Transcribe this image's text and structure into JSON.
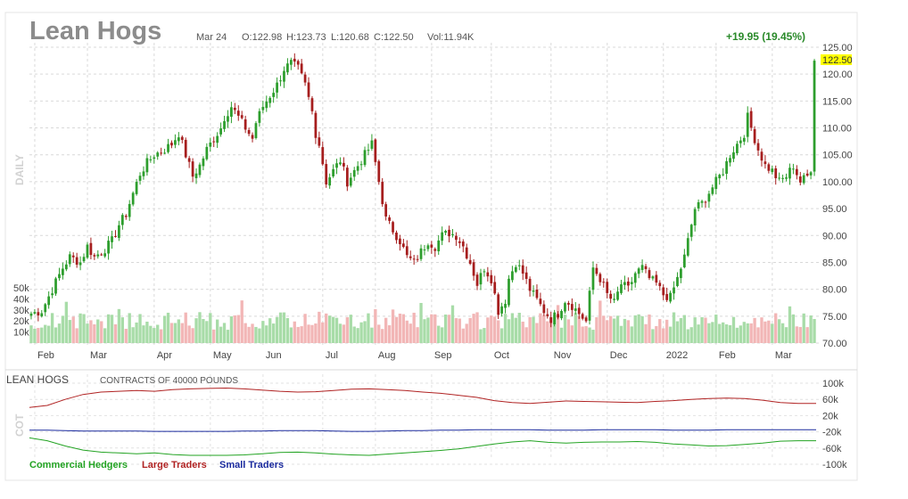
{
  "header": {
    "title": "Lean Hogs",
    "date": "Mar 24",
    "open": "O:122.98",
    "high": "H:123.73",
    "low": "L:120.68",
    "close": "C:122.50",
    "volume": "Vol:11.94K",
    "change": "+19.95 (19.45%)",
    "last_price_tag": "122.50"
  },
  "colors": {
    "up": "#2d9e2d",
    "down": "#a61e1e",
    "vol_up": "#a8dca8",
    "vol_down": "#f2b6b6",
    "commercial": "#22a322",
    "large": "#b02222",
    "small": "#1a2a9e",
    "price_tag_bg": "#ffff00",
    "change": "#2a8a2a"
  },
  "side_labels": {
    "daily": "DAILY",
    "cot": "COT"
  },
  "cot": {
    "title": "LEAN HOGS",
    "subtitle": "CONTRACTS OF 40000 POUNDS",
    "legend": [
      "Commercial Hedgers",
      "Large Traders",
      "Small Traders"
    ]
  },
  "chart_data": [
    {
      "type": "line",
      "subtype": "candlestick_with_volume",
      "title": "Lean Hogs",
      "y_ticks": [
        "125.00",
        "120.00",
        "115.00",
        "110.00",
        "105.00",
        "100.00",
        "95.00",
        "90.00",
        "85.00",
        "80.00",
        "75.00",
        "70.00"
      ],
      "ylim": [
        70,
        125
      ],
      "volume_ticks": [
        "50k",
        "40k",
        "30k",
        "20k",
        "10k"
      ],
      "volume_lim": [
        0,
        50000
      ],
      "x_tick_labels": [
        "Feb",
        "Mar",
        "Apr",
        "May",
        "Jun",
        "Jul",
        "Aug",
        "Sep",
        "Oct",
        "Nov",
        "Dec",
        "2022",
        "Feb",
        "Mar"
      ],
      "grid": true,
      "close_path": [
        [
          0,
          75.5
        ],
        [
          3,
          76
        ],
        [
          6,
          80
        ],
        [
          9,
          84
        ],
        [
          11,
          86
        ],
        [
          14,
          85
        ],
        [
          16,
          88
        ],
        [
          18,
          86
        ],
        [
          21,
          87.5
        ],
        [
          23,
          89
        ],
        [
          25,
          92
        ],
        [
          27,
          94
        ],
        [
          28,
          96
        ],
        [
          31,
          101.5
        ],
        [
          33,
          103.5
        ],
        [
          35,
          105
        ],
        [
          38,
          106
        ],
        [
          40,
          107
        ],
        [
          42,
          109
        ],
        [
          43,
          107
        ],
        [
          45,
          103
        ],
        [
          46,
          101
        ],
        [
          48,
          103
        ],
        [
          50,
          106
        ],
        [
          52,
          108
        ],
        [
          54,
          110
        ],
        [
          55,
          112
        ],
        [
          57,
          114
        ],
        [
          59,
          112
        ],
        [
          61,
          110
        ],
        [
          63,
          108
        ],
        [
          64,
          111
        ],
        [
          66,
          114
        ],
        [
          68,
          116
        ],
        [
          70,
          118
        ],
        [
          72,
          121
        ],
        [
          74,
          122
        ],
        [
          76,
          121
        ],
        [
          78,
          118
        ],
        [
          80,
          113
        ],
        [
          81,
          109
        ],
        [
          82,
          107
        ],
        [
          84,
          100
        ],
        [
          86,
          102
        ],
        [
          88,
          104
        ],
        [
          90,
          100
        ],
        [
          92,
          102
        ],
        [
          94,
          104
        ],
        [
          96,
          106
        ],
        [
          97,
          107
        ],
        [
          101,
          93
        ],
        [
          103,
          91
        ],
        [
          105,
          89
        ],
        [
          107,
          86
        ],
        [
          109,
          85
        ],
        [
          111,
          87
        ],
        [
          113,
          89
        ],
        [
          115,
          88
        ],
        [
          117,
          90
        ],
        [
          119,
          90.5
        ],
        [
          121,
          90
        ],
        [
          123,
          88
        ],
        [
          125,
          85
        ],
        [
          127,
          81
        ],
        [
          129,
          84
        ],
        [
          131,
          82
        ],
        [
          133,
          76
        ],
        [
          135,
          78
        ],
        [
          136,
          82
        ],
        [
          138,
          85
        ],
        [
          140,
          83
        ],
        [
          142,
          80
        ],
        [
          144,
          78
        ],
        [
          146,
          76
        ],
        [
          148,
          74.5
        ],
        [
          150,
          75.5
        ],
        [
          152,
          78
        ],
        [
          154,
          77
        ],
        [
          156,
          75.5
        ],
        [
          158,
          74
        ],
        [
          160,
          84
        ],
        [
          162,
          82
        ],
        [
          164,
          79
        ],
        [
          166,
          77.5
        ],
        [
          168,
          81
        ],
        [
          170,
          80
        ],
        [
          172,
          83
        ],
        [
          174,
          84
        ],
        [
          176,
          82
        ],
        [
          178,
          81
        ],
        [
          180,
          79
        ],
        [
          182,
          78.5
        ],
        [
          184,
          82
        ],
        [
          186,
          86
        ],
        [
          189,
          95
        ],
        [
          191,
          96
        ],
        [
          193,
          98
        ],
        [
          195,
          100
        ],
        [
          197,
          102
        ],
        [
          199,
          105
        ],
        [
          201,
          107
        ],
        [
          203,
          109
        ],
        [
          204,
          112
        ],
        [
          205,
          110
        ],
        [
          207,
          106
        ],
        [
          209,
          103
        ],
        [
          211,
          102
        ],
        [
          213,
          100
        ],
        [
          215,
          101
        ],
        [
          217,
          103
        ],
        [
          219,
          100
        ],
        [
          221,
          101
        ],
        [
          222,
          102.5
        ],
        [
          223,
          122.5
        ]
      ],
      "last_close": 122.5
    },
    {
      "type": "line",
      "title": "LEAN HOGS",
      "y_ticks": [
        "100k",
        "60k",
        "20k",
        "-20k",
        "-60k",
        "-100k"
      ],
      "ylim": [
        -100000,
        100000
      ],
      "series": [
        {
          "name": "Large Traders",
          "values": [
            40000,
            45000,
            60000,
            72000,
            78000,
            80000,
            82000,
            80000,
            84000,
            86000,
            87000,
            88000,
            86000,
            83000,
            80000,
            78000,
            79000,
            82000,
            85000,
            86000,
            84000,
            82000,
            78000,
            75000,
            70000,
            65000,
            57000,
            52000,
            50000,
            53000,
            56000,
            55000,
            54000,
            53000,
            52000,
            55000,
            57000,
            60000,
            62000,
            63000,
            62000,
            58000,
            52000,
            50000,
            50000
          ]
        },
        {
          "name": "Small Traders",
          "values": [
            -16000,
            -16000,
            -17000,
            -18000,
            -18000,
            -18000,
            -18000,
            -19000,
            -19000,
            -19000,
            -19000,
            -19000,
            -18000,
            -18000,
            -17000,
            -17000,
            -17000,
            -18000,
            -19000,
            -19000,
            -18000,
            -17000,
            -17000,
            -16000,
            -16000,
            -15000,
            -15000,
            -15000,
            -15000,
            -16000,
            -16000,
            -16000,
            -15000,
            -15000,
            -15000,
            -15000,
            -16000,
            -16000,
            -16000,
            -15000,
            -15000,
            -15000,
            -15000,
            -15000,
            -15000
          ]
        },
        {
          "name": "Commercial Hedgers",
          "values": [
            -35000,
            -42000,
            -55000,
            -65000,
            -70000,
            -72000,
            -74000,
            -72000,
            -76000,
            -78000,
            -78000,
            -78000,
            -77000,
            -74000,
            -71000,
            -70000,
            -72000,
            -75000,
            -77000,
            -78000,
            -75000,
            -72000,
            -69000,
            -66000,
            -62000,
            -56000,
            -50000,
            -45000,
            -42000,
            -46000,
            -48000,
            -46000,
            -45000,
            -45000,
            -44000,
            -46000,
            -50000,
            -52000,
            -55000,
            -54000,
            -51000,
            -48000,
            -43000,
            -42000,
            -42000
          ]
        }
      ]
    }
  ]
}
